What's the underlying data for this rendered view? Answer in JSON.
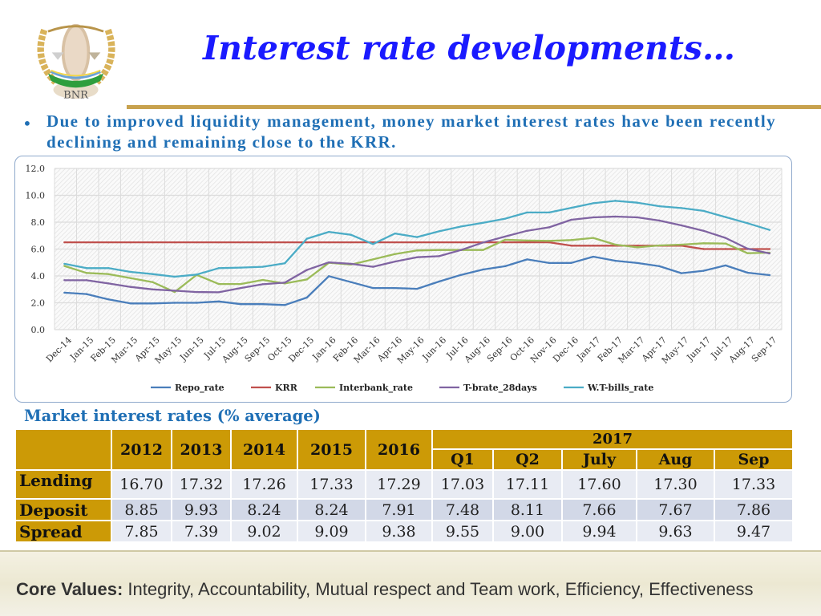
{
  "logo": {
    "text": "BNR",
    "colors": {
      "gold": "#d9b35a",
      "green": "#2e9e3e",
      "blue": "#6aa3d8"
    }
  },
  "title": "Interest rate developments…",
  "bullet": "Due to improved liquidity management, money market interest rates have been recently declining and remaining close to the KRR.",
  "chart_data": {
    "type": "line",
    "title": "",
    "xlabel": "",
    "ylabel": "",
    "ylim": [
      0,
      12
    ],
    "yticks": [
      "0.0",
      "2.0",
      "4.0",
      "6.0",
      "8.0",
      "10.0",
      "12.0"
    ],
    "grid": true,
    "legend": "bottom",
    "categories": [
      "Dec-14",
      "Jan-15",
      "Feb-15",
      "Mar-15",
      "Apr-15",
      "May-15",
      "Jun-15",
      "Jul-15",
      "Aug-15",
      "Sep-15",
      "Oct-15",
      "Dec-15",
      "Jan-16",
      "Feb-16",
      "Mar-16",
      "Apr-16",
      "May-16",
      "Jun-16",
      "Jul-16",
      "Aug-16",
      "Sep-16",
      "Oct-16",
      "Nov-16",
      "Dec-16",
      "Jan-17",
      "Feb-17",
      "Mar-17",
      "Apr-17",
      "May-17",
      "Jun-17",
      "Jul-17",
      "Aug-17",
      "Sep-17"
    ],
    "series": [
      {
        "name": "Repo_rate",
        "color": "#4a7ebb",
        "values": [
          2.75,
          2.65,
          2.25,
          1.95,
          1.95,
          2.0,
          2.0,
          2.1,
          1.9,
          1.9,
          1.83,
          2.39,
          3.98,
          3.54,
          3.1,
          3.1,
          3.04,
          3.58,
          4.08,
          4.48,
          4.72,
          5.23,
          4.96,
          4.97,
          5.43,
          5.13,
          4.96,
          4.72,
          4.2,
          4.38,
          4.78,
          4.24,
          4.06
        ]
      },
      {
        "name": "KRR",
        "color": "#c0504d",
        "values": [
          6.5,
          6.5,
          6.5,
          6.5,
          6.5,
          6.5,
          6.5,
          6.5,
          6.5,
          6.5,
          6.5,
          6.5,
          6.5,
          6.5,
          6.5,
          6.5,
          6.5,
          6.5,
          6.5,
          6.5,
          6.5,
          6.5,
          6.5,
          6.25,
          6.25,
          6.25,
          6.25,
          6.25,
          6.25,
          6.0,
          6.0,
          6.0,
          6.0
        ]
      },
      {
        "name": "Interbank_rate",
        "color": "#9bbb59",
        "values": [
          4.74,
          4.22,
          4.14,
          3.84,
          3.54,
          2.8,
          4.08,
          3.4,
          3.4,
          3.7,
          3.44,
          3.74,
          4.98,
          4.84,
          5.23,
          5.63,
          5.89,
          5.93,
          5.93,
          5.93,
          6.69,
          6.63,
          6.61,
          6.67,
          6.83,
          6.33,
          6.13,
          6.27,
          6.33,
          6.43,
          6.41,
          5.69,
          5.73
        ]
      },
      {
        "name": "T-brate_28days",
        "color": "#8064a2",
        "values": [
          3.68,
          3.68,
          3.44,
          3.18,
          3.0,
          2.9,
          2.8,
          2.78,
          3.1,
          3.38,
          3.5,
          4.44,
          5.01,
          4.9,
          4.68,
          5.07,
          5.39,
          5.47,
          5.93,
          6.49,
          6.93,
          7.36,
          7.62,
          8.18,
          8.36,
          8.42,
          8.36,
          8.12,
          7.76,
          7.36,
          6.83,
          6.03,
          5.67
        ]
      },
      {
        "name": "W.T-bills_rate",
        "color": "#4bacc6",
        "values": [
          4.9,
          4.58,
          4.58,
          4.3,
          4.14,
          3.94,
          4.1,
          4.58,
          4.62,
          4.68,
          4.94,
          6.77,
          7.28,
          7.06,
          6.37,
          7.16,
          6.89,
          7.32,
          7.68,
          7.96,
          8.26,
          8.72,
          8.72,
          9.07,
          9.41,
          9.59,
          9.45,
          9.19,
          9.05,
          8.84,
          8.38,
          7.92,
          7.42
        ]
      }
    ]
  },
  "table": {
    "title": "Market interest rates (% average)",
    "group_header": "2017",
    "years": [
      "2012",
      "2013",
      "2014",
      "2015",
      "2016"
    ],
    "periods_2017": [
      "Q1",
      "Q2",
      "July",
      "Aug",
      "Sep"
    ],
    "rows": [
      {
        "label": "Lending",
        "values": [
          "16.70",
          "17.32",
          "17.26",
          "17.33",
          "17.29",
          "17.03",
          "17.11",
          "17.60",
          "17.30",
          "17.33"
        ]
      },
      {
        "label": "Deposit",
        "values": [
          "8.85",
          "9.93",
          "8.24",
          "8.24",
          "7.91",
          "7.48",
          "8.11",
          "7.66",
          "7.67",
          "7.86"
        ]
      },
      {
        "label": "Spread",
        "values": [
          "7.85",
          "7.39",
          "9.02",
          "9.09",
          "9.38",
          "9.55",
          "9.00",
          "9.94",
          "9.63",
          "9.47"
        ]
      }
    ],
    "colors": {
      "header": "#cc9a06",
      "row": "#e8ebf3",
      "row_alt": "#d2d8e7"
    }
  },
  "footer": {
    "label": "Core Values:",
    "text": " Integrity, Accountability, Mutual respect and Team work, Efficiency, Effectiveness"
  }
}
